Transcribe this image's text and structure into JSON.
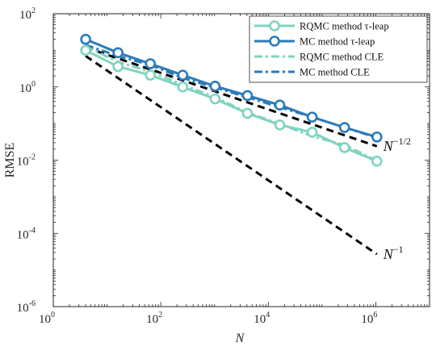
{
  "chart_data": {
    "type": "line",
    "title": "",
    "xlabel": "N",
    "ylabel": "RMSE",
    "xscale": "log",
    "yscale": "log",
    "xlim": [
      1,
      10000000
    ],
    "ylim": [
      1e-06,
      100
    ],
    "grid": false,
    "legend_position": "top-right",
    "x_ticks": [
      {
        "base": "10",
        "exp": "0"
      },
      {
        "base": "10",
        "exp": "2"
      },
      {
        "base": "10",
        "exp": "4"
      },
      {
        "base": "10",
        "exp": "6"
      }
    ],
    "y_ticks": [
      {
        "base": "10",
        "exp": "-6"
      },
      {
        "base": "10",
        "exp": "-4"
      },
      {
        "base": "10",
        "exp": "-2"
      },
      {
        "base": "10",
        "exp": "0"
      },
      {
        "base": "10",
        "exp": "2"
      }
    ],
    "series": [
      {
        "name": "RQMC method τ-leap",
        "color": "#7fd3c0",
        "style": "solid-circle",
        "x": [
          4,
          16,
          64,
          256,
          1024,
          4096,
          16384,
          65536,
          262144,
          1048576
        ],
        "y": [
          10,
          3.6,
          2.1,
          1.0,
          0.47,
          0.19,
          0.092,
          0.058,
          0.022,
          0.0094
        ]
      },
      {
        "name": "MC method τ-leap",
        "color": "#2b7bba",
        "style": "solid-circle",
        "x": [
          4,
          16,
          64,
          256,
          1024,
          4096,
          16384,
          65536,
          262144,
          1048576
        ],
        "y": [
          20,
          8.6,
          4.3,
          2.1,
          1.05,
          0.58,
          0.32,
          0.15,
          0.078,
          0.043
        ]
      },
      {
        "name": "RQMC method CLE",
        "color": "#7fd3c0",
        "style": "dashdot",
        "x": [
          4,
          16,
          64,
          256,
          1024,
          4096,
          16384,
          65536,
          262144,
          1048576
        ],
        "y": [
          13,
          4.8,
          2.6,
          1.15,
          0.52,
          0.2,
          0.098,
          0.045,
          0.026,
          0.0097
        ]
      },
      {
        "name": "MC method CLE",
        "color": "#2b7bba",
        "style": "dashdot",
        "x": [
          4,
          16,
          64,
          256,
          1024,
          4096,
          16384,
          65536,
          262144,
          1048576
        ],
        "y": [
          14,
          7.0,
          4.0,
          1.75,
          0.97,
          0.52,
          0.28,
          0.15,
          0.079,
          0.041
        ]
      }
    ],
    "reference_lines": [
      {
        "label": "N",
        "exp": "−1/2",
        "color": "#000000",
        "x": [
          4,
          1048576
        ],
        "y": [
          12,
          0.024
        ]
      },
      {
        "label": "N",
        "exp": "−1",
        "color": "#000000",
        "x": [
          4,
          1048576
        ],
        "y": [
          7,
          2.7e-05
        ]
      }
    ]
  }
}
